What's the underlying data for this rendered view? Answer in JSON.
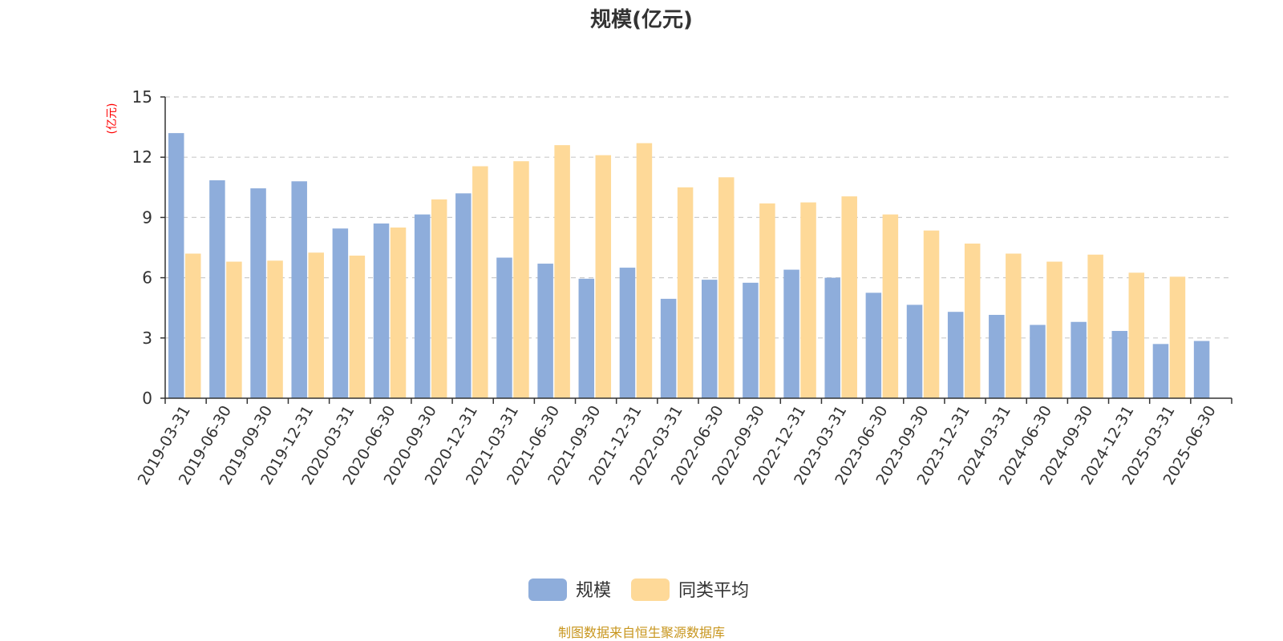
{
  "chart_data": {
    "type": "bar",
    "title": "规模(亿元)",
    "ylabel": "(亿元)",
    "ylim": [
      0,
      15
    ],
    "yticks": [
      0,
      3,
      6,
      9,
      12,
      15
    ],
    "grid": true,
    "legend_position": "bottom-center",
    "categories": [
      "2019-03-31",
      "2019-06-30",
      "2019-09-30",
      "2019-12-31",
      "2020-03-31",
      "2020-06-30",
      "2020-09-30",
      "2020-12-31",
      "2021-03-31",
      "2021-06-30",
      "2021-09-30",
      "2021-12-31",
      "2022-03-31",
      "2022-06-30",
      "2022-09-30",
      "2022-12-31",
      "2023-03-31",
      "2023-06-30",
      "2023-09-30",
      "2023-12-31",
      "2024-03-31",
      "2024-06-30",
      "2024-09-30",
      "2024-12-31",
      "2025-03-31",
      "2025-06-30"
    ],
    "series": [
      {
        "name": "规模",
        "color": "#8eaddb",
        "values": [
          13.2,
          10.85,
          10.45,
          10.8,
          8.45,
          8.7,
          9.15,
          10.2,
          7.0,
          6.7,
          5.95,
          6.5,
          4.95,
          5.9,
          5.75,
          6.4,
          6.0,
          5.25,
          4.65,
          4.3,
          4.15,
          3.65,
          3.8,
          3.35,
          2.7,
          2.85
        ]
      },
      {
        "name": "同类平均",
        "color": "#fed998",
        "values": [
          7.2,
          6.8,
          6.85,
          7.25,
          7.1,
          8.5,
          9.9,
          11.55,
          11.8,
          12.6,
          12.1,
          12.7,
          10.5,
          11.0,
          9.7,
          9.75,
          10.05,
          9.15,
          8.35,
          7.7,
          7.2,
          6.8,
          7.15,
          6.25,
          6.05,
          null
        ]
      }
    ]
  },
  "source_text": "制图数据来自恒生聚源数据库",
  "colors": {
    "axis": "#333333",
    "grid": "#cccccc",
    "unit_label": "#ff0000",
    "source_text": "#c8961e"
  }
}
